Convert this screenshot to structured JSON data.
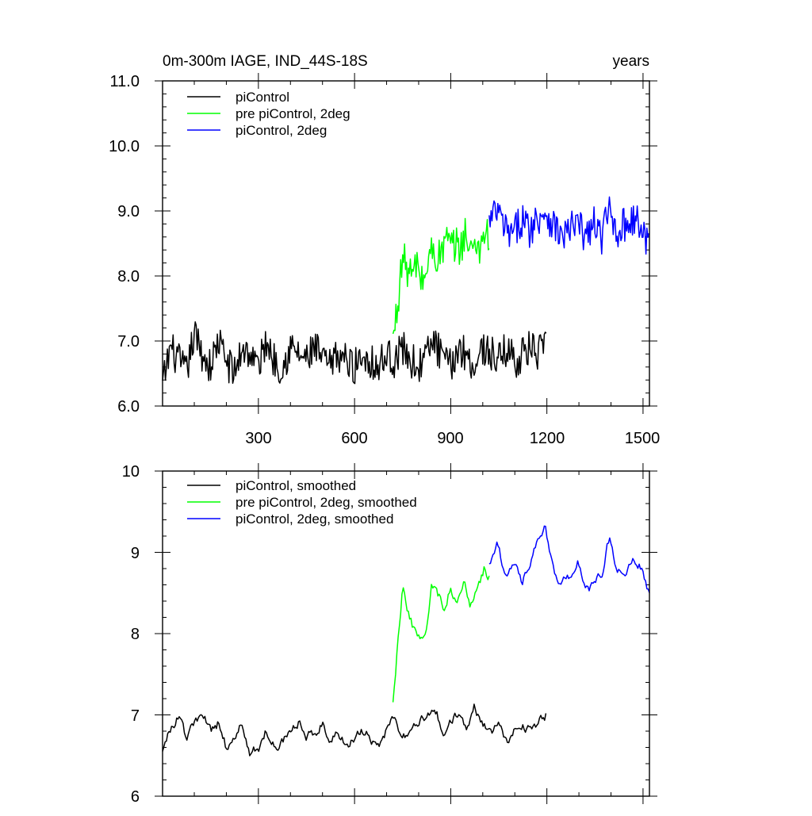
{
  "colors": {
    "piControl": "#000000",
    "pre_piControl_2deg": "#00ff00",
    "piControl_2deg": "#0000ff",
    "axis": "#000000",
    "background": "#ffffff"
  },
  "chart_data": [
    {
      "type": "line",
      "title": "0m-300m IAGE, IND_44S-18S",
      "units": "years",
      "xlim": [
        1,
        1520
      ],
      "ylim": [
        6.0,
        11.0
      ],
      "xticks": [
        300,
        600,
        900,
        1200,
        1500
      ],
      "xtick_labels": [
        "300",
        "600",
        "900",
        "1200",
        "1500"
      ],
      "yticks": [
        6.0,
        7.0,
        8.0,
        9.0,
        10.0,
        11.0
      ],
      "ytick_labels": [
        "6.0",
        "7.0",
        "8.0",
        "9.0",
        "10.0",
        "11.0"
      ],
      "grid": false,
      "legend_position": "top-left",
      "series": [
        {
          "name": "piControl",
          "color": "#000000",
          "x_start": 1,
          "x_end": 1200,
          "x": [
            1,
            25,
            50,
            75,
            100,
            125,
            150,
            175,
            200,
            225,
            250,
            275,
            300,
            325,
            350,
            375,
            400,
            425,
            450,
            475,
            500,
            525,
            550,
            575,
            600,
            625,
            650,
            675,
            700,
            725,
            750,
            775,
            800,
            825,
            850,
            875,
            900,
            925,
            950,
            975,
            1000,
            1025,
            1050,
            1075,
            1100,
            1125,
            1150,
            1175,
            1200
          ],
          "values": [
            6.3,
            6.9,
            6.7,
            6.5,
            7.1,
            6.8,
            6.6,
            7.0,
            6.7,
            6.5,
            6.9,
            6.8,
            6.6,
            7.0,
            6.7,
            6.6,
            6.9,
            6.8,
            6.7,
            6.9,
            6.7,
            6.6,
            6.8,
            6.7,
            6.6,
            6.8,
            6.7,
            6.6,
            6.8,
            6.7,
            6.9,
            6.7,
            6.6,
            6.8,
            7.0,
            6.7,
            6.6,
            6.9,
            6.8,
            6.6,
            6.9,
            6.8,
            6.7,
            6.9,
            6.7,
            6.8,
            6.9,
            6.8,
            6.9
          ],
          "range": [
            6.05,
            7.55
          ]
        },
        {
          "name": "pre piControl, 2deg",
          "color": "#00ff00",
          "x_start": 720,
          "x_end": 1020,
          "x": [
            720,
            735,
            750,
            765,
            780,
            795,
            810,
            825,
            840,
            855,
            870,
            885,
            900,
            915,
            930,
            945,
            960,
            975,
            990,
            1005,
            1020
          ],
          "values": [
            7.0,
            7.6,
            8.3,
            8.1,
            8.0,
            8.2,
            7.9,
            8.1,
            8.4,
            8.3,
            8.3,
            8.6,
            8.4,
            8.5,
            8.4,
            8.7,
            8.3,
            8.6,
            8.4,
            8.7,
            8.6
          ],
          "range": [
            6.95,
            9.4
          ]
        },
        {
          "name": "piControl, 2deg",
          "color": "#0000ff",
          "x_start": 1020,
          "x_end": 1520,
          "x": [
            1020,
            1045,
            1070,
            1095,
            1120,
            1145,
            1170,
            1195,
            1220,
            1245,
            1270,
            1295,
            1320,
            1345,
            1370,
            1395,
            1420,
            1445,
            1470,
            1495,
            1520
          ],
          "values": [
            8.8,
            9.0,
            8.7,
            8.6,
            8.9,
            8.7,
            8.9,
            9.0,
            8.8,
            8.6,
            8.7,
            8.8,
            8.6,
            8.8,
            8.6,
            9.0,
            8.7,
            8.8,
            8.9,
            8.7,
            8.5
          ],
          "range": [
            7.7,
            10.05
          ]
        }
      ]
    },
    {
      "type": "line",
      "xlim": [
        1,
        1520
      ],
      "ylim": [
        6,
        10
      ],
      "xticks": [
        300,
        600,
        900,
        1200,
        1500
      ],
      "yticks": [
        6,
        7,
        8,
        9,
        10
      ],
      "ytick_labels": [
        "6",
        "7",
        "8",
        "9",
        "10"
      ],
      "grid": false,
      "legend_position": "top-left",
      "series": [
        {
          "name": "piControl, smoothed",
          "color": "#000000",
          "x": [
            1,
            25,
            50,
            75,
            100,
            125,
            150,
            175,
            200,
            225,
            250,
            275,
            300,
            325,
            350,
            375,
            400,
            425,
            450,
            475,
            500,
            525,
            550,
            575,
            600,
            625,
            650,
            675,
            700,
            725,
            750,
            775,
            800,
            825,
            850,
            875,
            900,
            925,
            950,
            975,
            1000,
            1025,
            1050,
            1075,
            1100,
            1125,
            1150,
            1175,
            1200
          ],
          "values": [
            6.6,
            6.8,
            7.0,
            6.7,
            6.9,
            7.0,
            6.8,
            6.9,
            6.6,
            6.7,
            6.9,
            6.5,
            6.6,
            6.8,
            6.6,
            6.7,
            6.8,
            6.9,
            6.7,
            6.8,
            6.9,
            6.7,
            6.8,
            6.6,
            6.7,
            6.8,
            6.7,
            6.6,
            6.8,
            7.0,
            6.7,
            6.8,
            6.9,
            7.0,
            7.1,
            6.8,
            6.9,
            7.0,
            6.8,
            7.1,
            6.9,
            6.8,
            6.9,
            6.7,
            6.8,
            6.9,
            6.8,
            6.9,
            7.0
          ]
        },
        {
          "name": "pre piControl, 2deg, smoothed",
          "color": "#00ff00",
          "x": [
            720,
            735,
            750,
            765,
            780,
            795,
            810,
            825,
            840,
            855,
            870,
            885,
            900,
            915,
            930,
            945,
            960,
            975,
            990,
            1005,
            1020
          ],
          "values": [
            7.2,
            7.9,
            8.6,
            8.3,
            8.1,
            8.0,
            7.9,
            8.0,
            8.6,
            8.5,
            8.4,
            8.3,
            8.6,
            8.4,
            8.5,
            8.7,
            8.3,
            8.5,
            8.6,
            8.8,
            8.7
          ]
        },
        {
          "name": "piControl, 2deg, smoothed",
          "color": "#0000ff",
          "x": [
            1020,
            1045,
            1070,
            1095,
            1120,
            1145,
            1170,
            1195,
            1220,
            1245,
            1270,
            1295,
            1320,
            1345,
            1370,
            1395,
            1420,
            1445,
            1470,
            1495,
            1520
          ],
          "values": [
            8.9,
            9.1,
            8.7,
            8.9,
            8.6,
            8.8,
            9.2,
            9.3,
            8.8,
            8.6,
            8.7,
            8.9,
            8.5,
            8.6,
            8.7,
            9.2,
            8.8,
            8.7,
            8.9,
            8.8,
            8.5
          ]
        }
      ]
    }
  ]
}
